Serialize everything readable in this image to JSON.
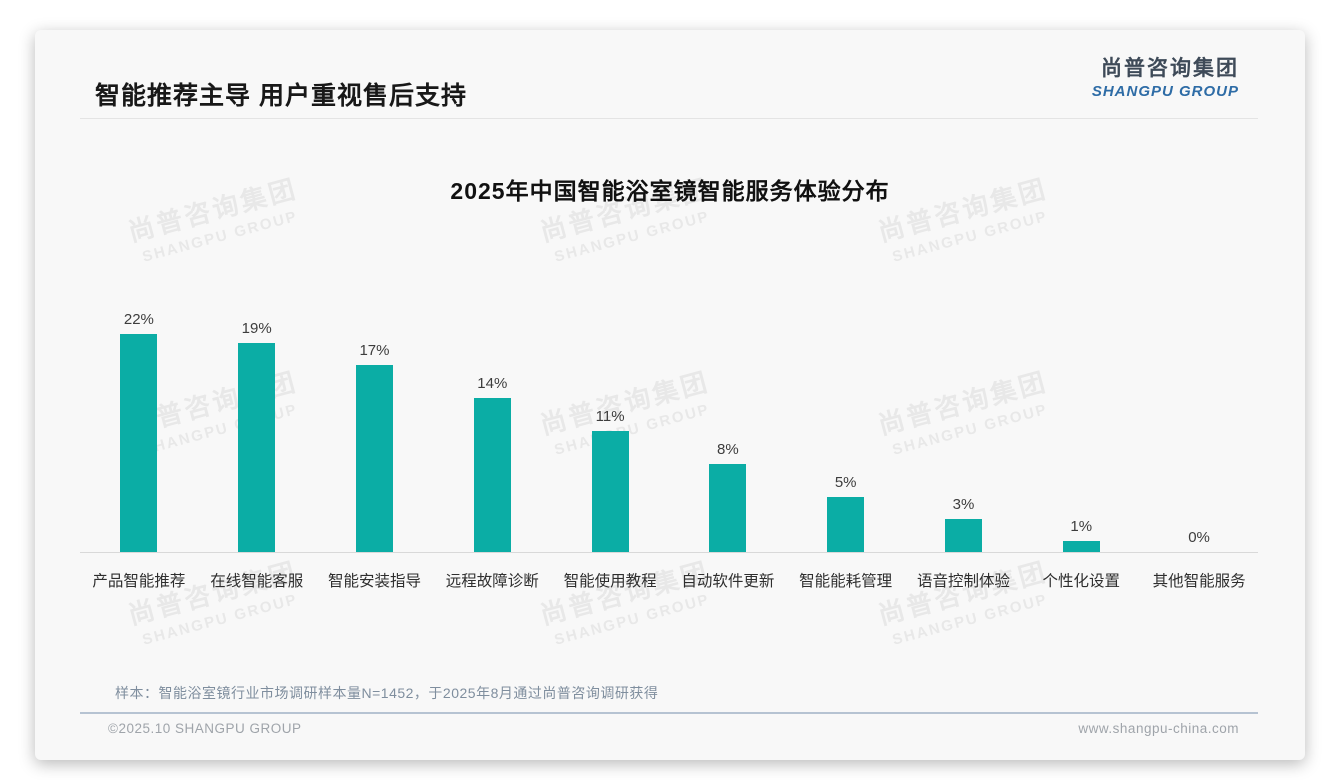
{
  "page_title": "智能推荐主导 用户重视售后支持",
  "logo": {
    "cn": "尚普咨询集团",
    "en": "SHANGPU GROUP"
  },
  "watermark": {
    "cn": "尚普咨询集团",
    "en": "SHANGPU GROUP"
  },
  "note": "样本：智能浴室镜行业市场调研样本量N=1452，于2025年8月通过尚普咨询调研获得",
  "footer": {
    "copyright": "©2025.10 SHANGPU GROUP",
    "website": "www.shangpu-china.com"
  },
  "colors": {
    "bar": "#0bada5",
    "logo_cn": "#3e4a58",
    "logo_en": "#2e6ca6",
    "axis_line": "#d9d9d9",
    "note_text": "#7f8e9e",
    "footer_divider": "#b6c3d2",
    "footer_text": "#9fa4aa"
  },
  "chart_data": {
    "type": "bar",
    "title": "2025年中国智能浴室镜智能服务体验分布",
    "categories": [
      "产品智能推荐",
      "在线智能客服",
      "智能安装指导",
      "远程故障诊断",
      "智能使用教程",
      "自动软件更新",
      "智能能耗管理",
      "语音控制体验",
      "个性化设置",
      "其他智能服务"
    ],
    "values": [
      22,
      19,
      17,
      14,
      11,
      8,
      5,
      3,
      1,
      0
    ],
    "data_labels": [
      "22%",
      "19%",
      "17%",
      "14%",
      "11%",
      "8%",
      "5%",
      "3%",
      "1%",
      "0%"
    ],
    "unit": "%",
    "ylim": [
      0,
      22
    ],
    "grid": false,
    "legend": false,
    "bar_color": "#0bada5"
  }
}
